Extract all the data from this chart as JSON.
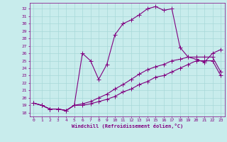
{
  "xlabel": "Windchill (Refroidissement éolien,°C)",
  "bg_color": "#c8ecec",
  "line_color": "#800080",
  "grid_color": "#a8d8d8",
  "x_ticks": [
    0,
    1,
    2,
    3,
    4,
    5,
    6,
    7,
    8,
    9,
    10,
    11,
    12,
    13,
    14,
    15,
    16,
    17,
    18,
    19,
    20,
    21,
    22,
    23
  ],
  "y_ticks": [
    18,
    19,
    20,
    21,
    22,
    23,
    24,
    25,
    26,
    27,
    28,
    29,
    30,
    31,
    32
  ],
  "ylim": [
    17.5,
    32.8
  ],
  "xlim": [
    -0.5,
    23.5
  ],
  "line1_x": [
    0,
    1,
    2,
    3,
    4,
    5,
    6,
    7,
    8,
    9,
    10,
    11,
    12,
    13,
    14,
    15,
    16,
    17,
    18,
    19,
    20,
    21,
    22,
    23
  ],
  "line1_y": [
    19.3,
    19.0,
    18.5,
    18.5,
    18.3,
    19.0,
    26.0,
    25.0,
    22.5,
    24.5,
    28.5,
    30.0,
    30.5,
    31.2,
    32.0,
    32.3,
    31.8,
    32.0,
    26.8,
    25.5,
    25.2,
    24.8,
    26.0,
    26.5
  ],
  "line2_x": [
    0,
    1,
    2,
    3,
    4,
    5,
    6,
    7,
    8,
    9,
    10,
    11,
    12,
    13,
    14,
    15,
    16,
    17,
    18,
    19,
    20,
    21,
    22,
    23
  ],
  "line2_y": [
    19.3,
    19.0,
    18.5,
    18.5,
    18.3,
    19.0,
    19.2,
    19.5,
    20.0,
    20.5,
    21.2,
    21.8,
    22.5,
    23.2,
    23.8,
    24.2,
    24.5,
    25.0,
    25.2,
    25.5,
    25.5,
    25.5,
    25.5,
    23.5
  ],
  "line3_x": [
    0,
    1,
    2,
    3,
    4,
    5,
    6,
    7,
    8,
    9,
    10,
    11,
    12,
    13,
    14,
    15,
    16,
    17,
    18,
    19,
    20,
    21,
    22,
    23
  ],
  "line3_y": [
    19.3,
    19.0,
    18.5,
    18.5,
    18.3,
    19.0,
    19.0,
    19.2,
    19.5,
    19.8,
    20.2,
    20.8,
    21.2,
    21.8,
    22.2,
    22.8,
    23.0,
    23.5,
    24.0,
    24.5,
    25.0,
    25.0,
    25.0,
    23.0
  ]
}
